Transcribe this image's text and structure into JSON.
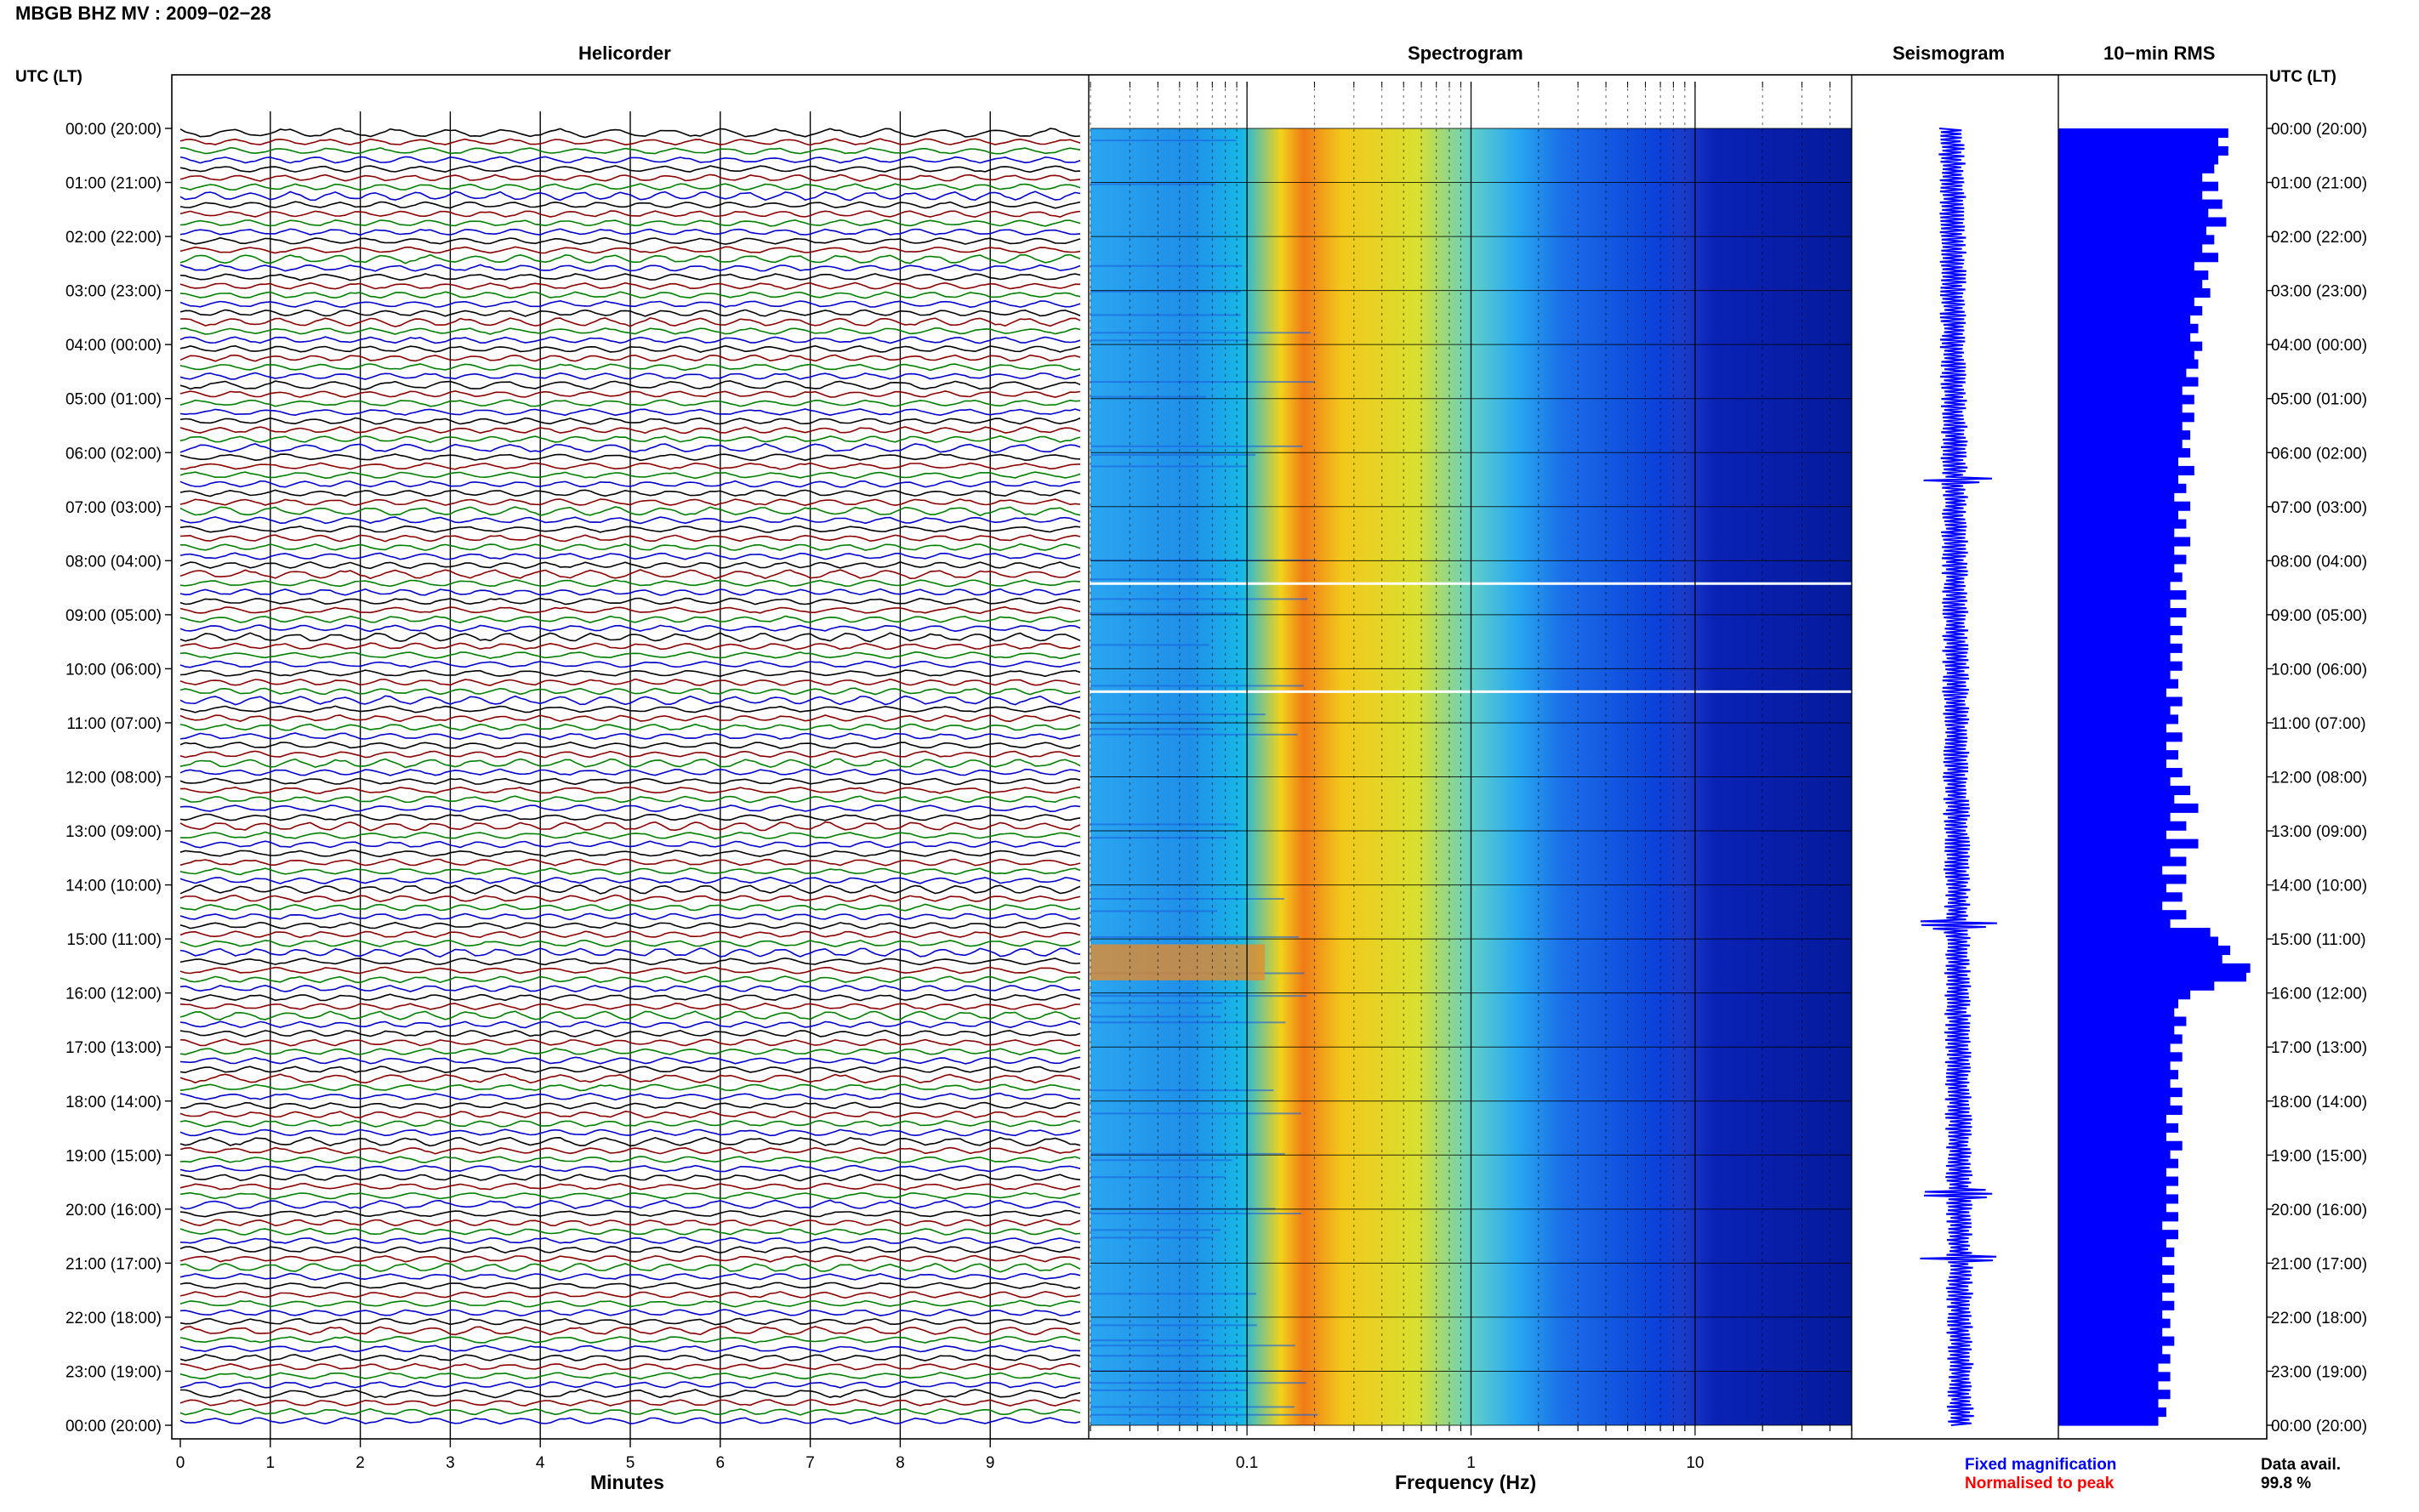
{
  "header": {
    "title": "MBGB BHZ MV : 2009−02−28",
    "utc_label": "UTC (LT)"
  },
  "panels": {
    "helicorder": "Helicorder",
    "spectrogram": "Spectrogram",
    "seismogram": "Seismogram",
    "rms": "10−min RMS"
  },
  "axes": {
    "minutes_label": "Minutes",
    "frequency_label": "Frequency (Hz)",
    "minute_ticks": [
      "0",
      "1",
      "2",
      "3",
      "4",
      "5",
      "6",
      "7",
      "8",
      "9"
    ],
    "freq_ticks": [
      "0.1",
      "1",
      "10"
    ]
  },
  "legend": {
    "fixed": "Fixed magnification",
    "normalised": "Normalised to peak",
    "fixed_color": "#0000ff",
    "normalised_color": "#ff0000"
  },
  "data_avail": {
    "label": "Data avail.",
    "value": "99.8 %"
  },
  "chart_data": [
    {
      "type": "line",
      "title": "Helicorder",
      "xlabel": "Minutes",
      "xlim": [
        0,
        10
      ],
      "hour_labels": [
        "00:00 (20:00)",
        "01:00 (21:00)",
        "02:00 (22:00)",
        "03:00 (23:00)",
        "04:00 (00:00)",
        "05:00 (01:00)",
        "06:00 (02:00)",
        "07:00 (03:00)",
        "08:00 (04:00)",
        "09:00 (05:00)",
        "10:00 (06:00)",
        "11:00 (07:00)",
        "12:00 (08:00)",
        "13:00 (09:00)",
        "14:00 (10:00)",
        "15:00 (11:00)",
        "16:00 (12:00)",
        "17:00 (13:00)",
        "18:00 (14:00)",
        "19:00 (15:00)",
        "20:00 (16:00)",
        "21:00 (17:00)",
        "22:00 (18:00)",
        "23:00 (19:00)",
        "00:00 (20:00)"
      ],
      "trace_colors": [
        "#000000",
        "#8b0000",
        "#008000",
        "#0000cd"
      ]
    },
    {
      "type": "heatmap",
      "title": "Spectrogram",
      "xlabel": "Frequency (Hz)",
      "xscale": "log",
      "xlim": [
        0.02,
        50
      ]
    },
    {
      "type": "line",
      "title": "Seismogram"
    },
    {
      "type": "bar",
      "title": "10−min RMS",
      "orientation": "horizontal",
      "bar_color": "#0000ff",
      "values": [
        85,
        80,
        85,
        80,
        78,
        72,
        80,
        72,
        82,
        75,
        84,
        74,
        78,
        72,
        80,
        68,
        75,
        72,
        76,
        68,
        72,
        66,
        70,
        66,
        72,
        68,
        70,
        64,
        70,
        62,
        68,
        62,
        68,
        62,
        66,
        62,
        66,
        60,
        68,
        60,
        64,
        58,
        66,
        60,
        64,
        58,
        66,
        58,
        64,
        58,
        62,
        56,
        64,
        56,
        64,
        56,
        62,
        56,
        62,
        56,
        62,
        56,
        60,
        54,
        62,
        56,
        60,
        54,
        62,
        54,
        60,
        54,
        62,
        56,
        66,
        58,
        70,
        56,
        64,
        54,
        70,
        56,
        64,
        52,
        64,
        54,
        62,
        52,
        64,
        56,
        76,
        80,
        86,
        82,
        96,
        94,
        78,
        66,
        60,
        58,
        64,
        58,
        62,
        56,
        62,
        56,
        60,
        56,
        62,
        56,
        62,
        54,
        60,
        54,
        62,
        56,
        60,
        54,
        60,
        54,
        60,
        54,
        60,
        52,
        60,
        54,
        58,
        52,
        58,
        52,
        58,
        52,
        58,
        52,
        56,
        52,
        58,
        52,
        56,
        50,
        56,
        50,
        56,
        50,
        54,
        50
      ]
    }
  ]
}
